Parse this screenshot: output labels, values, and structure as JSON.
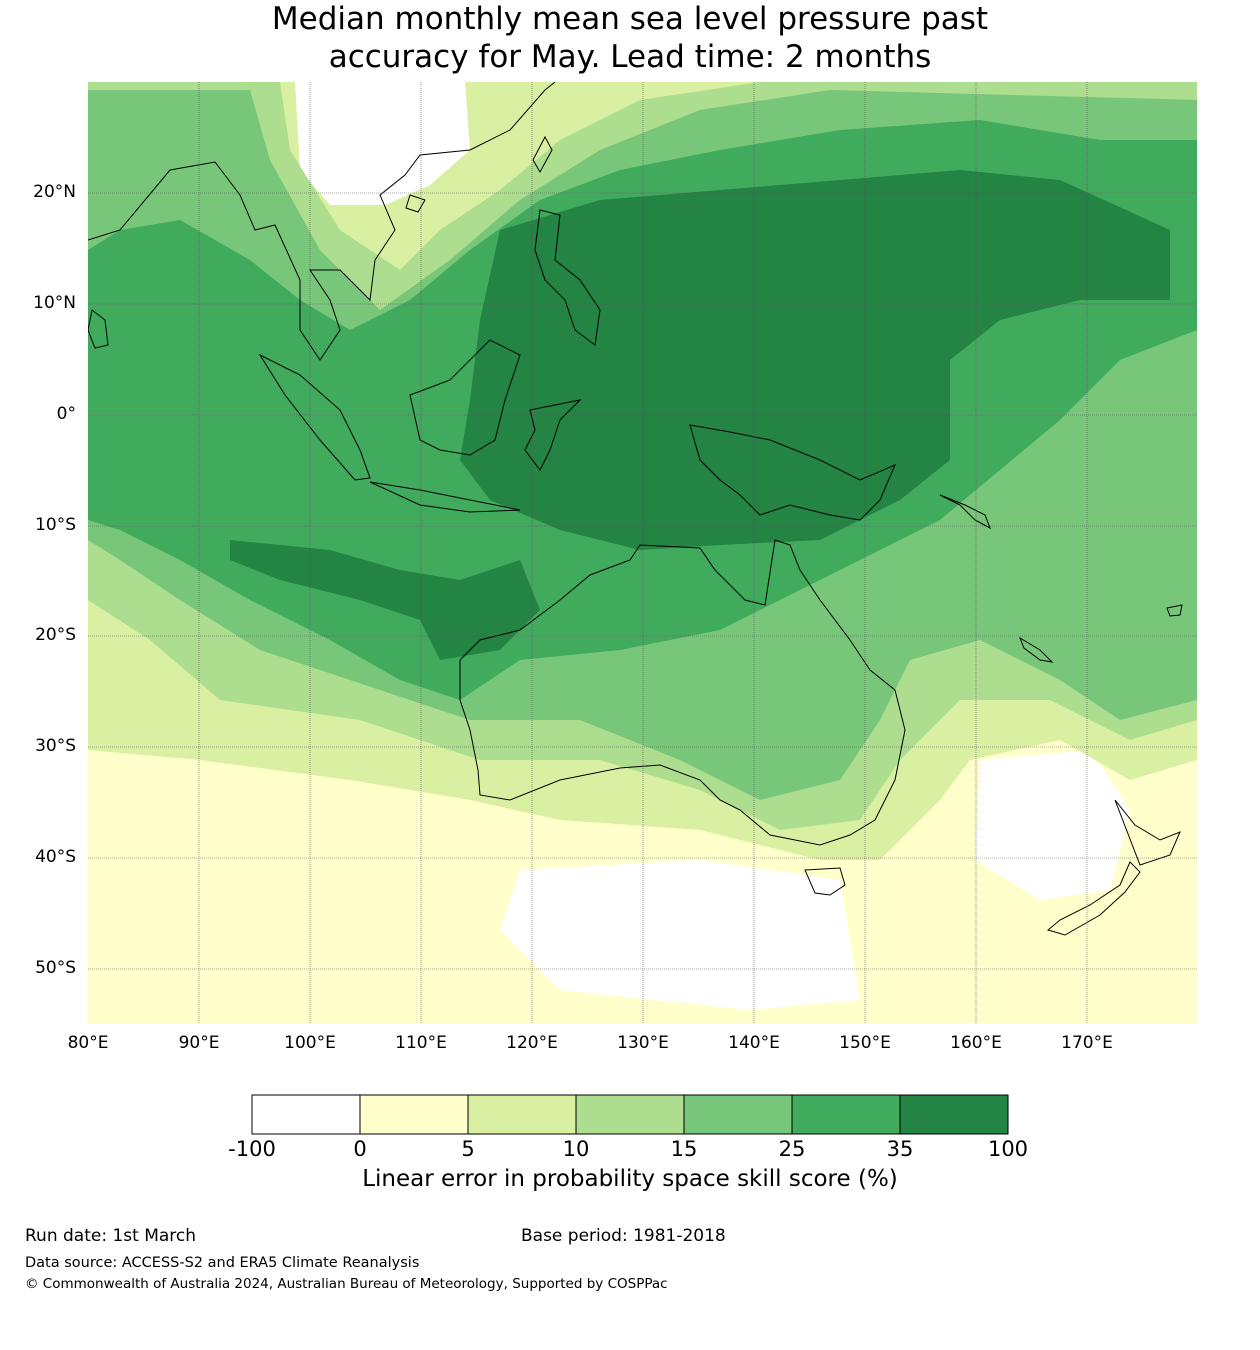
{
  "title": {
    "line1": "Median monthly mean sea level pressure past",
    "line2": "accuracy for May. Lead time: 2 months"
  },
  "map": {
    "lat_labels": [
      "20°N",
      "10°N",
      "0°",
      "10°S",
      "20°S",
      "30°S",
      "40°S",
      "50°S"
    ],
    "lon_labels": [
      "80°E",
      "90°E",
      "100°E",
      "110°E",
      "120°E",
      "130°E",
      "140°E",
      "150°E",
      "160°E",
      "170°E"
    ]
  },
  "colorbar": {
    "ticks": [
      "-100",
      "0",
      "5",
      "10",
      "15",
      "25",
      "35",
      "100"
    ],
    "colors": [
      "#ffffff",
      "#ffffcc",
      "#d9f0a3",
      "#addd8e",
      "#78c679",
      "#41ab5d",
      "#238443"
    ],
    "label": "Linear error in probability space skill score (%)"
  },
  "footer": {
    "run_date": "Run date: 1st March",
    "base_period": "Base period: 1981-2018",
    "data_source": "Data source: ACCESS-S2 and ERA5 Climate Reanalysis",
    "copyright": "© Commonwealth of Australia 2024, Australian Bureau of Meteorology, Supported by COSPPac"
  }
}
